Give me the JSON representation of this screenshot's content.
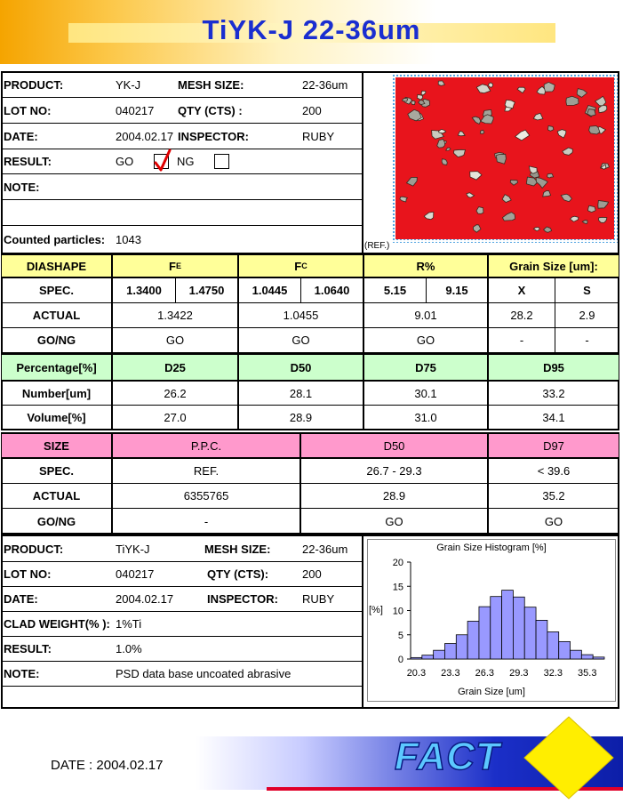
{
  "title": "TiYK-J 22-36um",
  "top_info": {
    "product_label": "PRODUCT:",
    "product": "YK-J",
    "mesh_label": "MESH SIZE:",
    "mesh": "22-36um",
    "lot_label": "LOT NO:",
    "lot": "040217",
    "qty_label": "QTY (CTS) :",
    "qty": "200",
    "date_label": "DATE:",
    "date": "2004.02.17",
    "inspector_label": "INSPECTOR:",
    "inspector": "RUBY",
    "result_label": "RESULT:",
    "go": "GO",
    "ng": "NG",
    "note_label": "NOTE:",
    "counted_label": "Counted particles:",
    "counted": "1043",
    "ref": "(REF.)"
  },
  "diashape": {
    "headers": [
      "DIASHAPE",
      "F",
      "F",
      "R%",
      "Grain Size [um]:"
    ],
    "subs": [
      "E",
      "C"
    ],
    "spec_label": "SPEC.",
    "spec": [
      "1.3400",
      "1.4750",
      "1.0445",
      "1.0640",
      "5.15",
      "9.15",
      "X",
      "S"
    ],
    "actual_label": "ACTUAL",
    "actual": [
      "1.3422",
      "1.0455",
      "9.01",
      "28.2",
      "2.9"
    ],
    "gong_label": "GO/NG",
    "gong": [
      "GO",
      "GO",
      "GO",
      "-",
      "-"
    ]
  },
  "percentage": {
    "headers": [
      "Percentage[%]",
      "D25",
      "D50",
      "D75",
      "D95"
    ],
    "number_label": "Number[um]",
    "number": [
      "26.2",
      "28.1",
      "30.1",
      "33.2"
    ],
    "volume_label": "Volume[%]",
    "volume": [
      "27.0",
      "28.9",
      "31.0",
      "34.1"
    ]
  },
  "size": {
    "headers": [
      "SIZE",
      "P.P.C.",
      "D50",
      "D97"
    ],
    "spec_label": "SPEC.",
    "spec": [
      "REF.",
      "26.7 - 29.3",
      "< 39.6"
    ],
    "actual_label": "ACTUAL",
    "actual": [
      "6355765",
      "28.9",
      "35.2"
    ],
    "gong_label": "GO/NG",
    "gong": [
      "-",
      "GO",
      "GO"
    ]
  },
  "bottom_info": {
    "product_label": "PRODUCT:",
    "product": "TiYK-J",
    "mesh_label": "MESH SIZE:",
    "mesh": "22-36um",
    "lot_label": "LOT NO:",
    "lot": "040217",
    "qty_label": "QTY (CTS):",
    "qty": "200",
    "date_label": "DATE:",
    "date": "2004.02.17",
    "inspector_label": "INSPECTOR:",
    "inspector": "RUBY",
    "clad_label": "CLAD WEIGHT(% ):",
    "clad": "1%Ti",
    "result_label": "RESULT:",
    "result": "1.0%",
    "note_label": "NOTE:",
    "note": "PSD data base uncoated abrasive"
  },
  "chart_data": {
    "type": "bar",
    "title": "Grain Size Histogram [%]",
    "xlabel": "Grain Size [um]",
    "ylabel": "[%]",
    "ylim": [
      0,
      20
    ],
    "yticks": [
      "0",
      "5",
      "10",
      "15",
      "20"
    ],
    "xticks": [
      "20.3",
      "23.3",
      "26.3",
      "29.3",
      "32.3",
      "35.3"
    ],
    "values": [
      0.3,
      0.8,
      1.8,
      3.2,
      5.0,
      7.8,
      10.8,
      12.9,
      14.2,
      12.8,
      10.7,
      8.0,
      5.6,
      3.6,
      1.8,
      0.9,
      0.4
    ],
    "bar_color": "#9999ff"
  },
  "footer": {
    "date": "DATE : 2004.02.17",
    "logo": "FACT"
  }
}
